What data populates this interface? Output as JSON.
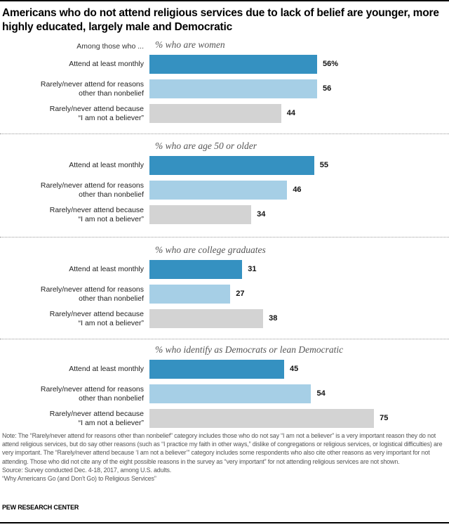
{
  "title": "Americans who do not attend religious services due to lack of belief are younger, more highly educated, largely male and Democratic",
  "chart_data": {
    "type": "bar",
    "orientation": "horizontal",
    "header_label": "Among those who ...",
    "categories": [
      "Attend at least monthly",
      "Rarely/never attend for reasons other than nonbelief",
      "Rarely/never attend because “I am not a believer”"
    ],
    "category_lines": [
      [
        "Attend at least monthly"
      ],
      [
        "Rarely/never attend for reasons",
        "other than nonbelief"
      ],
      [
        "Rarely/never attend because",
        "“I am not a believer”"
      ]
    ],
    "colors": [
      "#3591c1",
      "#a6cfe6",
      "#d3d3d3"
    ],
    "xlim": [
      0,
      100
    ],
    "grid": false,
    "panels": [
      {
        "subtitle": "% who are women",
        "values": [
          56,
          56,
          44
        ],
        "labels": [
          "56%",
          "56",
          "44"
        ]
      },
      {
        "subtitle": "% who are age 50 or older",
        "values": [
          55,
          46,
          34
        ],
        "labels": [
          "55",
          "46",
          "34"
        ]
      },
      {
        "subtitle": "% who are college graduates",
        "values": [
          31,
          27,
          38
        ],
        "labels": [
          "31",
          "27",
          "38"
        ]
      },
      {
        "subtitle": "% who identify as Democrats or lean Democratic",
        "values": [
          45,
          54,
          75
        ],
        "labels": [
          "45",
          "54",
          "75"
        ]
      }
    ]
  },
  "note": "Note: The “Rarely/never attend for reasons other than nonbelief” category includes those who do not say “I am not a believer” is a very important reason they do not attend religious services, but do say other reasons (such as “I practice my faith in other ways,” dislike of congregations or religious services, or logistical difficulties) are very important. The “Rarely/never attend because ‘I am not a believer’” category includes some respondents who also cite other reasons as very important for not attending. Those who did not cite any of the eight possible reasons in the survey as “very important” for not attending religious services are not shown.",
  "source": "Source: Survey conducted Dec. 4-18, 2017, among U.S. adults.",
  "report": "“Why Americans Go (and Don’t Go) to Religious Services”",
  "logo": "PEW RESEARCH CENTER"
}
